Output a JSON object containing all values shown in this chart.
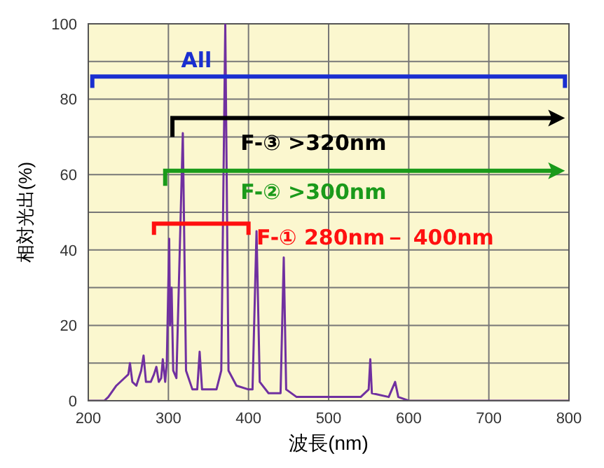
{
  "chart_data": {
    "type": "line",
    "xlabel": "波長(nm)",
    "ylabel": "相対光出(%)",
    "x": [
      200,
      220,
      225,
      235,
      245,
      250,
      252,
      255,
      260,
      266,
      269,
      272,
      278,
      282,
      285,
      288,
      291,
      293,
      296,
      298,
      301,
      302,
      304,
      306,
      310,
      318,
      322,
      330,
      336,
      339,
      342,
      360,
      366,
      371,
      375,
      385,
      400,
      405,
      410,
      414,
      425,
      440,
      444,
      447,
      460,
      540,
      550,
      552,
      554,
      575,
      583,
      587,
      600,
      800
    ],
    "series": [
      {
        "color": "#7030a0",
        "values": [
          0,
          0,
          1,
          4,
          6,
          7,
          10,
          5,
          4,
          8,
          12,
          5,
          5,
          7,
          9,
          5,
          6,
          11,
          5,
          10,
          43,
          20,
          30,
          8,
          6,
          71,
          8,
          3,
          3,
          13,
          3,
          3,
          8,
          100,
          8,
          4,
          3,
          3,
          45,
          5,
          2,
          2,
          38,
          3,
          1,
          1,
          3,
          11,
          2,
          1,
          5,
          1,
          0,
          0
        ]
      }
    ],
    "xlim": [
      200,
      800
    ],
    "xticks": [
      200,
      300,
      400,
      500,
      600,
      700,
      800
    ],
    "ylim": [
      0,
      100
    ],
    "yticks": [
      0,
      {
        "value": 10,
        "label": null
      },
      20,
      {
        "value": 30,
        "label": null
      },
      40,
      {
        "value": 50,
        "label": null
      },
      60,
      {
        "value": 70,
        "label": null
      },
      80,
      {
        "value": 90,
        "label": null
      },
      100
    ],
    "grid": true,
    "marker": "none",
    "line_style": "solid",
    "legend": false,
    "annotations": [
      "All",
      "F-③  >320nm",
      "F-② >300nm",
      "F-① 280nm－ 400nm"
    ]
  }
}
